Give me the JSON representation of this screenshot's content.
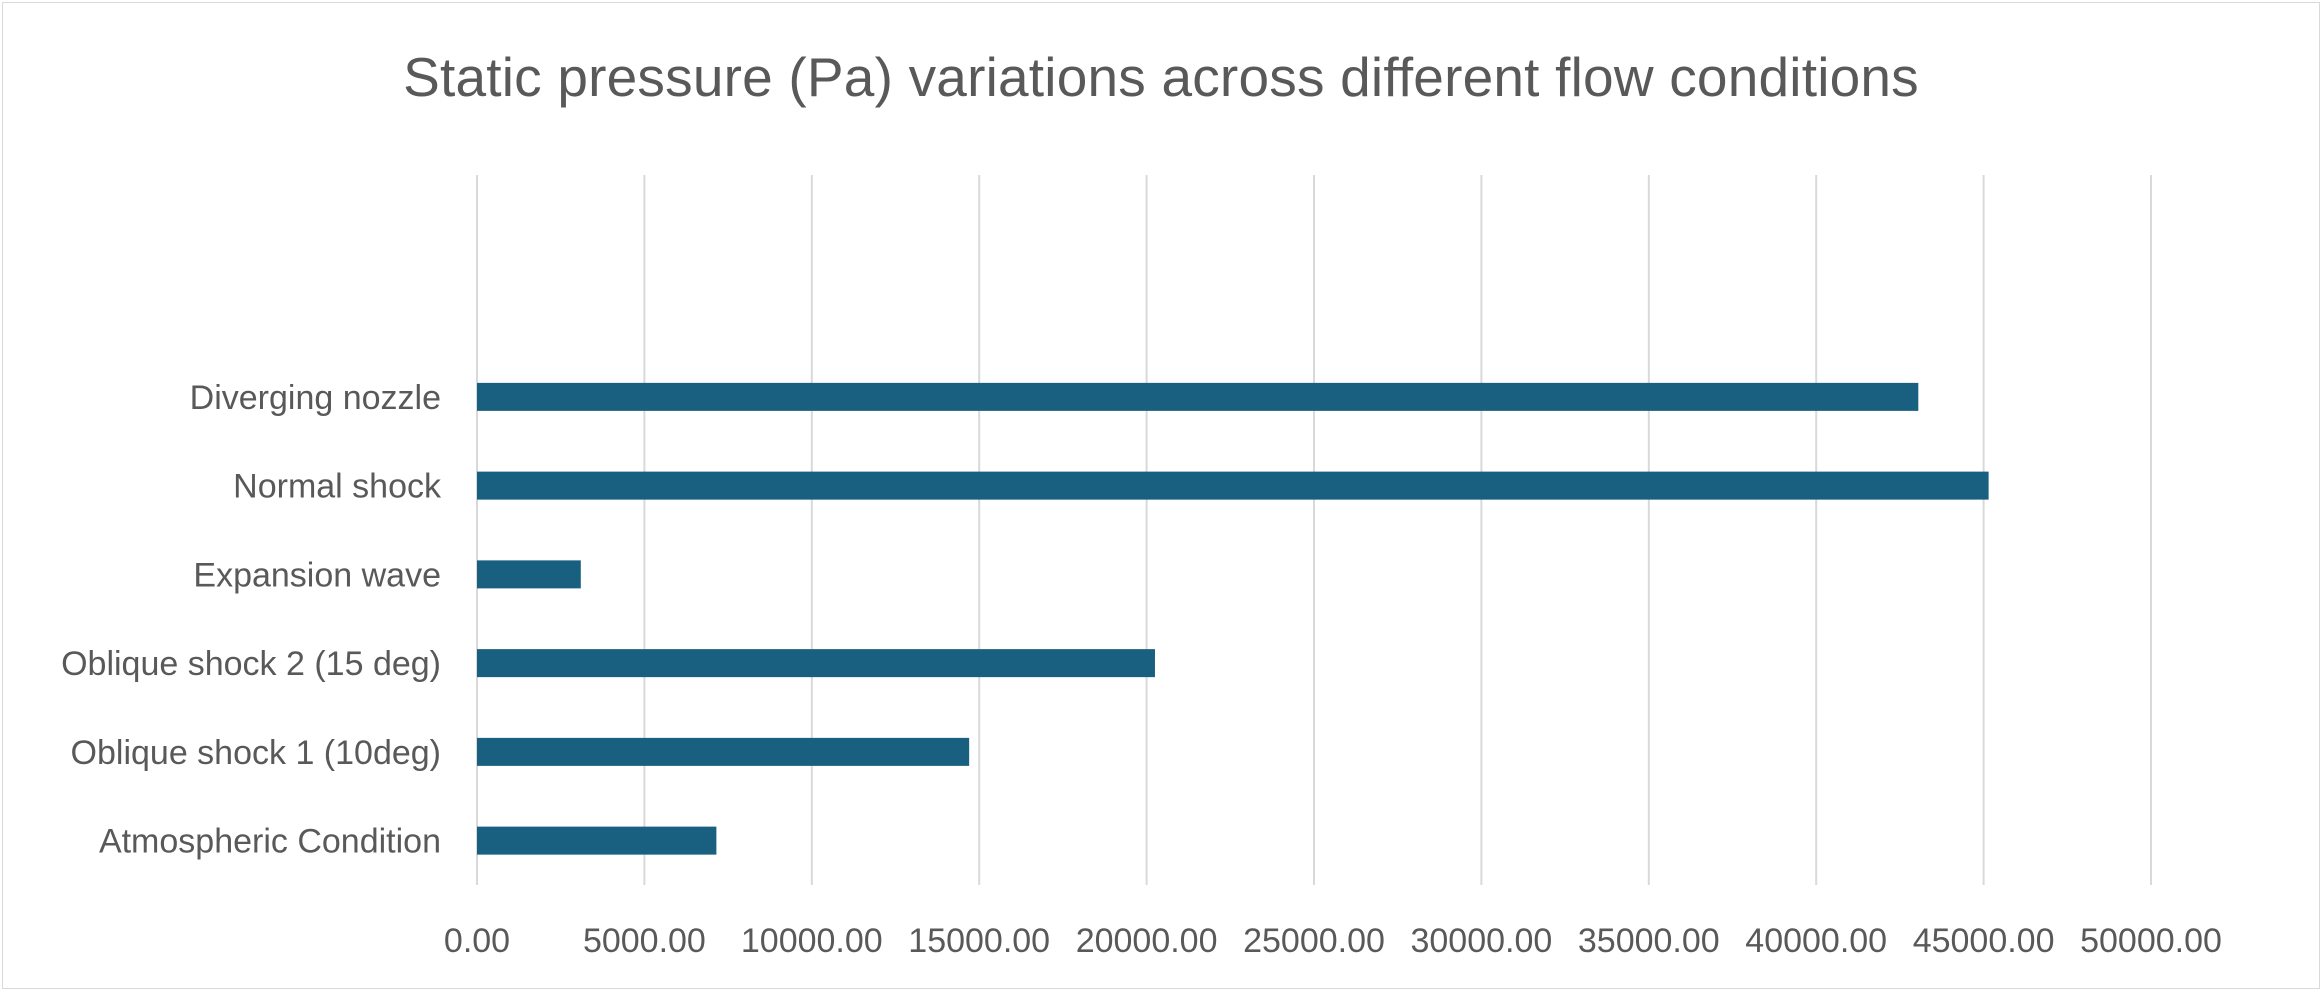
{
  "chart_data": {
    "type": "bar",
    "orientation": "horizontal",
    "title": "Static pressure (Pa) variations across different flow conditions",
    "xlabel": "",
    "ylabel": "",
    "categories": [
      "Atmospheric Condition",
      "Oblique shock 1 (10deg)",
      "Oblique shock 2 (15 deg)",
      "Expansion wave",
      "Normal shock",
      "Diverging nozzle",
      "",
      ""
    ],
    "values": [
      7150,
      14700,
      20250,
      3100,
      45150,
      43050,
      null,
      null
    ],
    "xlim": [
      0,
      50000
    ],
    "xticks": [
      0,
      5000,
      10000,
      15000,
      20000,
      25000,
      30000,
      35000,
      40000,
      45000,
      50000
    ],
    "xtick_labels": [
      "0.00",
      "5000.00",
      "10000.00",
      "15000.00",
      "20000.00",
      "25000.00",
      "30000.00",
      "35000.00",
      "40000.00",
      "45000.00",
      "50000.00"
    ],
    "grid": "vertical",
    "legend": "none",
    "bar_color": "#185f80"
  }
}
